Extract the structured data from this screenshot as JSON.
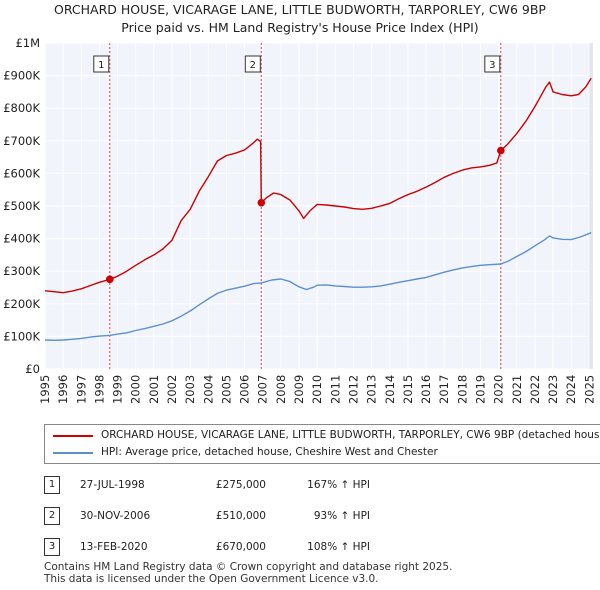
{
  "chart_data": {
    "type": "line",
    "title": "ORCHARD HOUSE, VICARAGE LANE, LITTLE BUDWORTH, TARPORLEY, CW6 9BP",
    "subtitle": "Price paid vs. HM Land Registry's House Price Index (HPI)",
    "xlim": [
      1995,
      2025.2
    ],
    "ylim": [
      0,
      1000000
    ],
    "x_ticks": [
      1995,
      1996,
      1997,
      1998,
      1999,
      2000,
      2001,
      2002,
      2003,
      2004,
      2005,
      2006,
      2007,
      2008,
      2009,
      2010,
      2011,
      2012,
      2013,
      2014,
      2015,
      2016,
      2017,
      2018,
      2019,
      2020,
      2021,
      2022,
      2023,
      2024,
      2025
    ],
    "y_ticks": [
      {
        "value": 0,
        "label": "£0"
      },
      {
        "value": 100000,
        "label": "£100K"
      },
      {
        "value": 200000,
        "label": "£200K"
      },
      {
        "value": 300000,
        "label": "£300K"
      },
      {
        "value": 400000,
        "label": "£400K"
      },
      {
        "value": 500000,
        "label": "£500K"
      },
      {
        "value": 600000,
        "label": "£600K"
      },
      {
        "value": 700000,
        "label": "£700K"
      },
      {
        "value": 800000,
        "label": "£800K"
      },
      {
        "value": 900000,
        "label": "£900K"
      },
      {
        "value": 1000000,
        "label": "£1M"
      }
    ],
    "series": [
      {
        "name": "ORCHARD HOUSE, VICARAGE LANE, LITTLE BUDWORTH, TARPORLEY, CW6 9BP (detached hous",
        "color": "#cc0000",
        "points": [
          [
            1995.0,
            240000
          ],
          [
            1995.5,
            237000
          ],
          [
            1996.0,
            234000
          ],
          [
            1996.5,
            239000
          ],
          [
            1997.0,
            246000
          ],
          [
            1997.5,
            256000
          ],
          [
            1998.0,
            266000
          ],
          [
            1998.57,
            275000
          ],
          [
            1999.0,
            285000
          ],
          [
            1999.5,
            300000
          ],
          [
            2000.0,
            318000
          ],
          [
            2000.5,
            335000
          ],
          [
            2001.0,
            350000
          ],
          [
            2001.5,
            368000
          ],
          [
            2002.0,
            395000
          ],
          [
            2002.5,
            455000
          ],
          [
            2003.0,
            490000
          ],
          [
            2003.5,
            545000
          ],
          [
            2004.0,
            590000
          ],
          [
            2004.5,
            638000
          ],
          [
            2005.0,
            655000
          ],
          [
            2005.5,
            662000
          ],
          [
            2006.0,
            672000
          ],
          [
            2006.4,
            690000
          ],
          [
            2006.7,
            705000
          ],
          [
            2006.88,
            698000
          ],
          [
            2006.92,
            510000
          ],
          [
            2007.2,
            525000
          ],
          [
            2007.6,
            540000
          ],
          [
            2008.0,
            535000
          ],
          [
            2008.5,
            518000
          ],
          [
            2009.0,
            485000
          ],
          [
            2009.25,
            462000
          ],
          [
            2009.6,
            485000
          ],
          [
            2010.0,
            505000
          ],
          [
            2010.5,
            503000
          ],
          [
            2011.0,
            500000
          ],
          [
            2011.5,
            497000
          ],
          [
            2012.0,
            492000
          ],
          [
            2012.5,
            490000
          ],
          [
            2013.0,
            493000
          ],
          [
            2013.5,
            500000
          ],
          [
            2014.0,
            508000
          ],
          [
            2014.5,
            522000
          ],
          [
            2015.0,
            535000
          ],
          [
            2015.5,
            545000
          ],
          [
            2016.0,
            558000
          ],
          [
            2016.5,
            572000
          ],
          [
            2017.0,
            588000
          ],
          [
            2017.5,
            600000
          ],
          [
            2018.0,
            610000
          ],
          [
            2018.5,
            617000
          ],
          [
            2019.0,
            620000
          ],
          [
            2019.5,
            625000
          ],
          [
            2019.9,
            632000
          ],
          [
            2020.12,
            670000
          ],
          [
            2020.5,
            690000
          ],
          [
            2021.0,
            722000
          ],
          [
            2021.5,
            760000
          ],
          [
            2022.0,
            805000
          ],
          [
            2022.3,
            835000
          ],
          [
            2022.6,
            865000
          ],
          [
            2022.8,
            880000
          ],
          [
            2023.0,
            850000
          ],
          [
            2023.5,
            842000
          ],
          [
            2024.0,
            838000
          ],
          [
            2024.4,
            842000
          ],
          [
            2024.8,
            865000
          ],
          [
            2025.1,
            892000
          ]
        ]
      },
      {
        "name": "HPI: Average price, detached house, Cheshire West and Chester",
        "color": "#5b8fd1",
        "points": [
          [
            1995.0,
            89000
          ],
          [
            1995.5,
            88000
          ],
          [
            1996.0,
            89000
          ],
          [
            1996.5,
            91000
          ],
          [
            1997.0,
            94000
          ],
          [
            1997.5,
            98000
          ],
          [
            1998.0,
            101000
          ],
          [
            1998.57,
            103000
          ],
          [
            1999.0,
            107000
          ],
          [
            1999.5,
            111000
          ],
          [
            2000.0,
            118000
          ],
          [
            2000.5,
            124000
          ],
          [
            2001.0,
            131000
          ],
          [
            2001.5,
            138000
          ],
          [
            2002.0,
            148000
          ],
          [
            2002.5,
            162000
          ],
          [
            2003.0,
            178000
          ],
          [
            2003.5,
            197000
          ],
          [
            2004.0,
            215000
          ],
          [
            2004.5,
            232000
          ],
          [
            2005.0,
            242000
          ],
          [
            2005.5,
            248000
          ],
          [
            2006.0,
            254000
          ],
          [
            2006.5,
            262000
          ],
          [
            2006.92,
            264000
          ],
          [
            2007.5,
            273000
          ],
          [
            2008.0,
            276000
          ],
          [
            2008.5,
            268000
          ],
          [
            2009.0,
            252000
          ],
          [
            2009.4,
            244000
          ],
          [
            2009.8,
            251000
          ],
          [
            2010.0,
            257000
          ],
          [
            2010.5,
            258000
          ],
          [
            2011.0,
            255000
          ],
          [
            2011.5,
            253000
          ],
          [
            2012.0,
            251000
          ],
          [
            2012.5,
            251000
          ],
          [
            2013.0,
            252000
          ],
          [
            2013.5,
            255000
          ],
          [
            2014.0,
            260000
          ],
          [
            2014.5,
            266000
          ],
          [
            2015.0,
            271000
          ],
          [
            2015.5,
            276000
          ],
          [
            2016.0,
            281000
          ],
          [
            2016.5,
            289000
          ],
          [
            2017.0,
            297000
          ],
          [
            2017.5,
            304000
          ],
          [
            2018.0,
            310000
          ],
          [
            2018.5,
            314000
          ],
          [
            2019.0,
            318000
          ],
          [
            2019.5,
            320000
          ],
          [
            2020.12,
            322000
          ],
          [
            2020.5,
            330000
          ],
          [
            2021.0,
            345000
          ],
          [
            2021.5,
            360000
          ],
          [
            2022.0,
            378000
          ],
          [
            2022.5,
            395000
          ],
          [
            2022.8,
            408000
          ],
          [
            2023.0,
            402000
          ],
          [
            2023.5,
            398000
          ],
          [
            2024.0,
            397000
          ],
          [
            2024.5,
            405000
          ],
          [
            2025.1,
            418000
          ]
        ]
      }
    ],
    "sales": [
      {
        "label": "1",
        "x": 1998.57,
        "y": 275000
      },
      {
        "label": "2",
        "x": 2006.92,
        "y": 510000
      },
      {
        "label": "3",
        "x": 2020.12,
        "y": 670000
      }
    ]
  },
  "legend": {
    "property_label": "ORCHARD HOUSE, VICARAGE LANE, LITTLE BUDWORTH, TARPORLEY, CW6 9BP (detached hous",
    "hpi_label": "HPI: Average price, detached house, Cheshire West and Chester",
    "property_color": "#cc0000",
    "hpi_color": "#5b8fd1"
  },
  "sales_table": [
    {
      "num": "1",
      "date": "27-JUL-1998",
      "price": "£275,000",
      "hpi": "167% ↑ HPI"
    },
    {
      "num": "2",
      "date": "30-NOV-2006",
      "price": "£510,000",
      "hpi": "93% ↑ HPI"
    },
    {
      "num": "3",
      "date": "13-FEB-2020",
      "price": "£670,000",
      "hpi": "108% ↑ HPI"
    }
  ],
  "footer": {
    "line1": "Contains HM Land Registry data © Crown copyright and database right 2025.",
    "line2": "This data is licensed under the Open Government Licence v3.0."
  }
}
